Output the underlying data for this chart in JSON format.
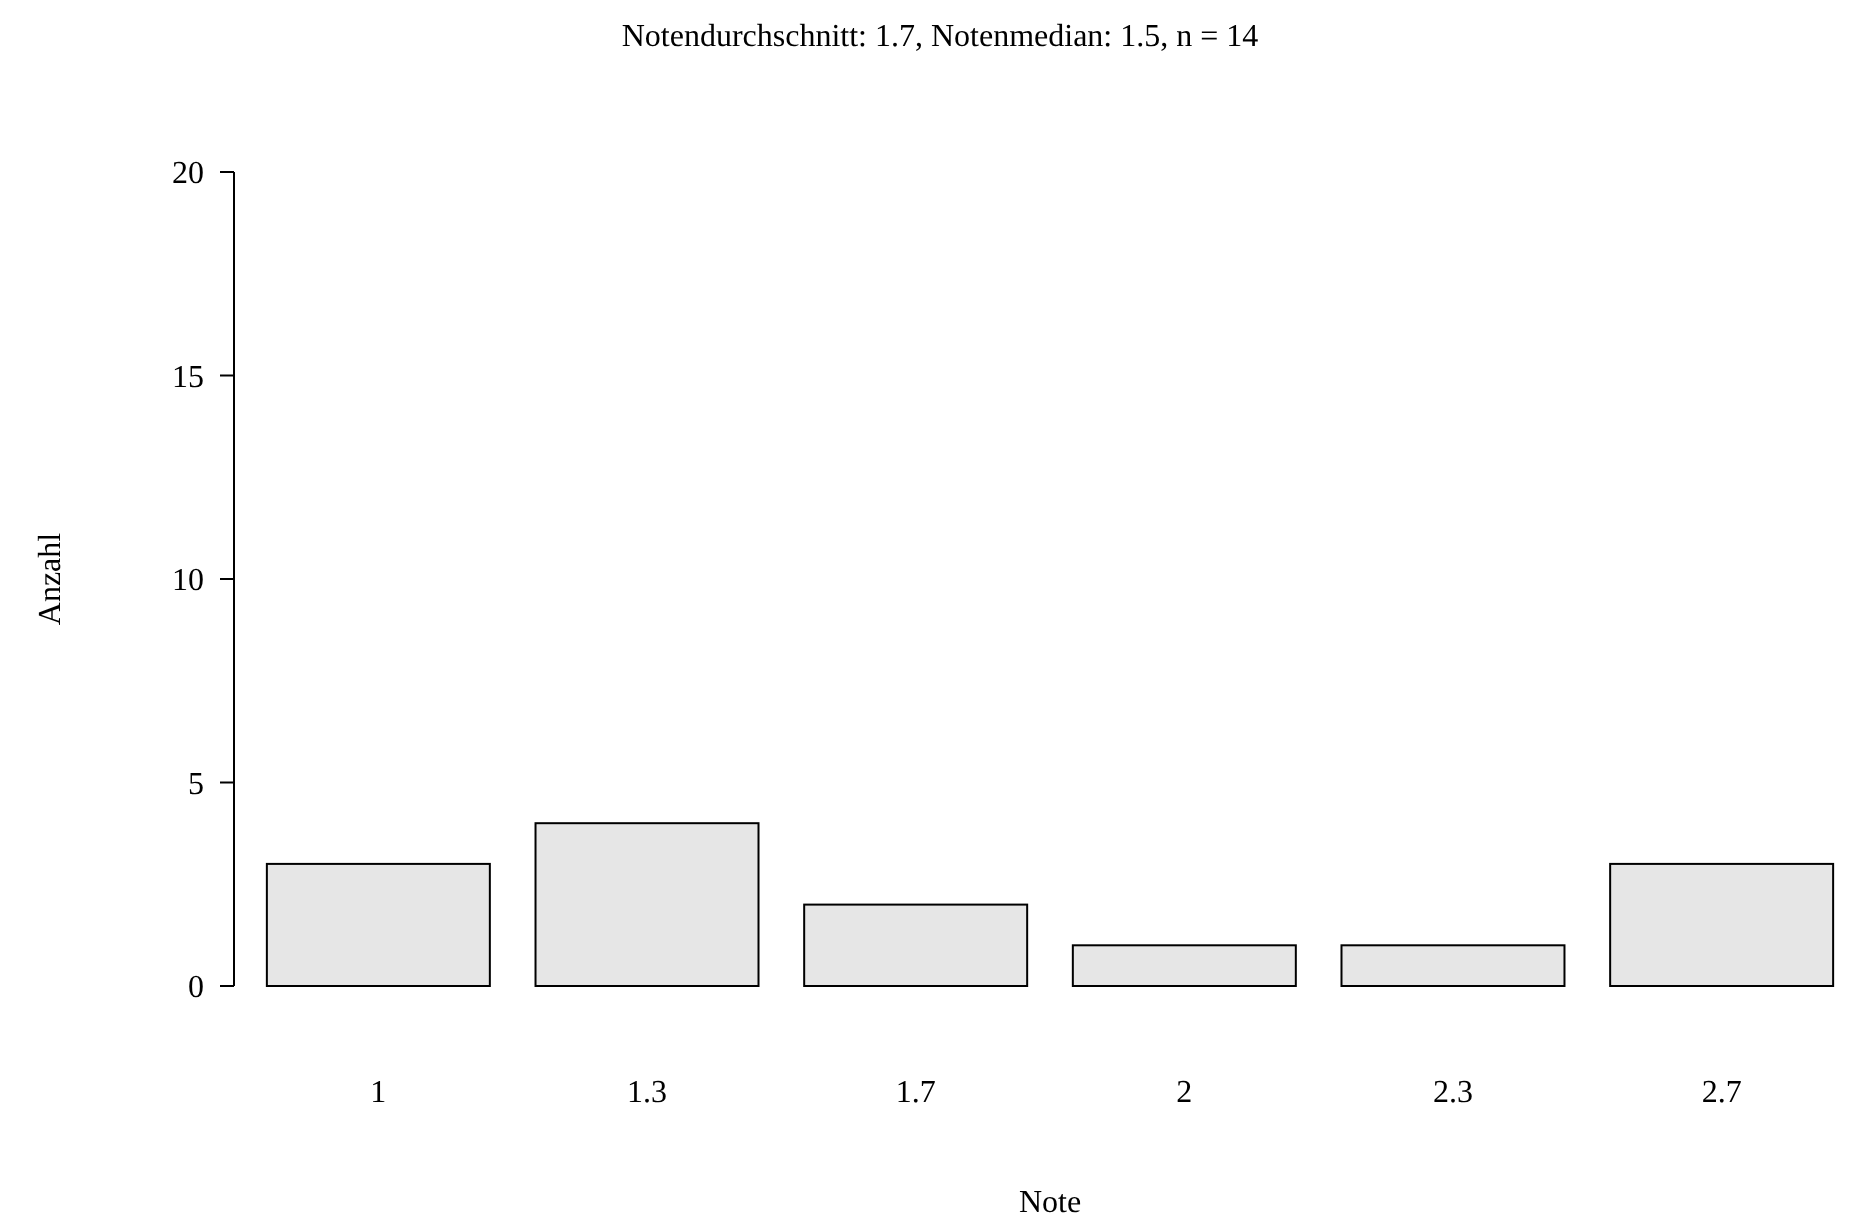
{
  "chart_data": {
    "type": "bar",
    "title": "Notendurchschnitt: 1.7, Notenmedian: 1.5, n = 14",
    "xlabel": "Note",
    "ylabel": "Anzahl",
    "categories": [
      "1",
      "1.3",
      "1.7",
      "2",
      "2.3",
      "2.7"
    ],
    "values": [
      3,
      4,
      2,
      1,
      1,
      3
    ],
    "color": "#e6e6e6",
    "ylim": [
      0,
      20
    ],
    "yticks": [
      0,
      5,
      10,
      15,
      20
    ],
    "grid": false
  }
}
